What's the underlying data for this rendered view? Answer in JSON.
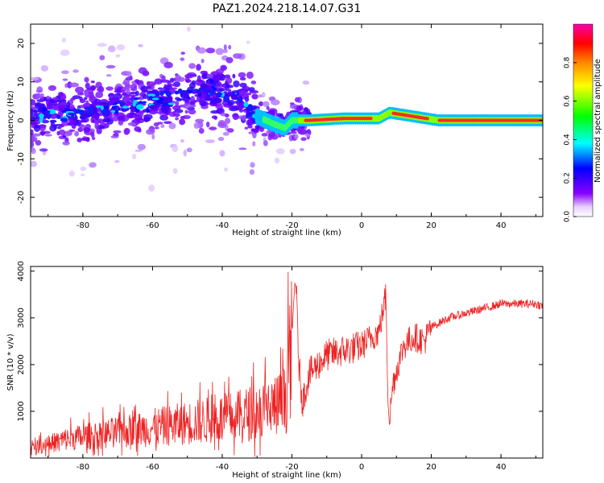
{
  "title": "PAZ1.2024.218.14.07.G31",
  "colors": {
    "snr_line": "#ee2222",
    "frame": "#000000",
    "background": "#ffffff"
  },
  "chart_data": [
    {
      "type": "heatmap",
      "title": "PAZ1.2024.218.14.07.G31",
      "xlabel": "Height of straight line (km)",
      "ylabel": "Frequency (Hz)",
      "xlim": [
        -95,
        52
      ],
      "ylim": [
        -25,
        25
      ],
      "xticks": [
        -80,
        -60,
        -40,
        -20,
        0,
        20,
        40
      ],
      "xtick_labels": [
        "-80",
        "-60",
        "-40",
        "-20",
        "0",
        "20",
        "40"
      ],
      "yticks": [
        20,
        10,
        0,
        -10,
        -20
      ],
      "ytick_labels": [
        "20",
        "10",
        "0",
        "-10",
        "-20"
      ],
      "colorbar": {
        "label": "Normalized spectral amplitude",
        "range": [
          0,
          1
        ],
        "ticks": [
          0.0,
          0.2,
          0.4,
          0.6,
          0.8
        ],
        "tick_labels": [
          "0.0",
          "0.2",
          "0.4",
          "0.6",
          "0.8"
        ],
        "colormap": [
          "#ffffff",
          "#7f00ff",
          "#0000ff",
          "#00ffff",
          "#00ff00",
          "#ffff00",
          "#ff8000",
          "#ff0000",
          "#ff00aa"
        ]
      },
      "ridge": {
        "description_points_x": [
          -93,
          -80,
          -65,
          -55,
          -45,
          -35,
          -30,
          -25,
          -22,
          -20,
          -15,
          -5,
          5,
          8,
          15,
          22,
          30,
          52
        ],
        "description_points_y": [
          1,
          2,
          4,
          6,
          8,
          6,
          1,
          -1,
          -2,
          0,
          0,
          0.5,
          0.5,
          2,
          1,
          0,
          0,
          0
        ]
      },
      "grid": false
    },
    {
      "type": "line",
      "xlabel": "Height of straight line (km)",
      "ylabel": "SNR (10 * v/v)",
      "xlim": [
        -95,
        52
      ],
      "ylim": [
        0,
        4100
      ],
      "xticks": [
        -80,
        -60,
        -40,
        -20,
        0,
        20,
        40
      ],
      "xtick_labels": [
        "-80",
        "-60",
        "-40",
        "-20",
        "0",
        "20",
        "40"
      ],
      "yticks": [
        1000,
        2000,
        3000,
        4000
      ],
      "ytick_labels": [
        "1000",
        "2000",
        "3000",
        "4000"
      ],
      "grid": false,
      "series": [
        {
          "x": [
            -95,
            -90,
            -85,
            -80,
            -75,
            -70,
            -65,
            -60,
            -55,
            -50,
            -45,
            -40,
            -35,
            -30,
            -25,
            -22,
            -20,
            -19,
            -18,
            -17,
            -15,
            -10,
            -5,
            0,
            3,
            5,
            7,
            7.5,
            8,
            9,
            12,
            15,
            18,
            20,
            25,
            30,
            35,
            40,
            45,
            50,
            52
          ],
          "y": [
            200,
            300,
            400,
            450,
            500,
            550,
            600,
            650,
            700,
            750,
            800,
            850,
            900,
            1000,
            1100,
            1200,
            2500,
            4000,
            2000,
            1200,
            1800,
            2200,
            2300,
            2400,
            2600,
            2700,
            3500,
            1500,
            800,
            1600,
            2400,
            2600,
            2500,
            2800,
            3000,
            3100,
            3200,
            3300,
            3300,
            3300,
            3250
          ]
        }
      ]
    }
  ]
}
